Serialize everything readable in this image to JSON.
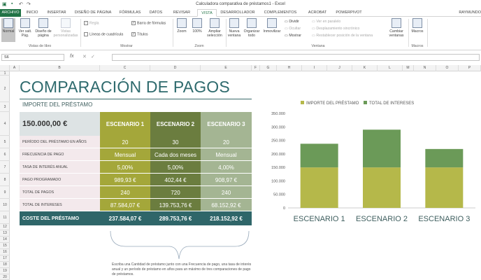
{
  "window": {
    "title": "Calculadora comparativa de préstamos1 - Excel",
    "user": "RAYMUNDO"
  },
  "tabs": [
    "ARCHIVO",
    "INICIO",
    "INSERTAR",
    "DISEÑO DE PÁGINA",
    "FÓRMULAS",
    "DATOS",
    "REVISAR",
    "VISTA",
    "DESARROLLADOR",
    "COMPLEMENTOS",
    "ACROBAT",
    "POWERPIVOT"
  ],
  "ribbon": {
    "views": {
      "normal": "Normal",
      "page_break": "Ver salt. Pág.",
      "page_layout": "Diseño de página",
      "custom": "Vistas personalizadas",
      "group": "Vistas de libro"
    },
    "show": {
      "ruler": "Regla",
      "gridlines": "Líneas de cuadrícula",
      "formula_bar": "Barra de fórmulas",
      "headings": "Títulos",
      "group": "Mostrar"
    },
    "zoom": {
      "zoom": "Zoom",
      "hundred": "100%",
      "selection": "Ampliar selección",
      "group": "Zoom"
    },
    "window": {
      "new": "Nueva ventana",
      "arrange": "Organizar todo",
      "freeze": "Inmovilizar",
      "split": "Dividir",
      "hide": "Ocultar",
      "unhide": "Mostrar",
      "side_by_side": "Ver en paralelo",
      "sync": "Desplazamiento sincrónico",
      "reset": "Restablecer posición de la ventana",
      "switch": "Cambiar ventanas",
      "group": "Ventana"
    },
    "macros": {
      "macros": "Macros",
      "group": "Macros"
    }
  },
  "formula_bar": {
    "name_box": "S6",
    "fx": "fx",
    "content": ""
  },
  "columns": [
    "A",
    "B",
    "C",
    "D",
    "E",
    "F",
    "G",
    "H",
    "I",
    "J",
    "K",
    "L",
    "M",
    "N",
    "O",
    "P"
  ],
  "rows": [
    "1",
    "2",
    "3",
    "4",
    "5",
    "6",
    "7",
    "8",
    "9",
    "10",
    "11",
    "12",
    "13",
    "14",
    "15",
    "16",
    "17",
    "18",
    "19",
    "20"
  ],
  "sheet": {
    "heading": "COMPARACIÓN DE PAGOS",
    "subheading": "IMPORTE DEL PRÉSTAMO",
    "loan_amount": "150.000,00 €",
    "scenarios": [
      "ESCENARIO 1",
      "ESCENARIO 2",
      "ESCENARIO 3"
    ],
    "rows": [
      {
        "label": "PERÍODO DEL PRÉSTAMO EN AÑOS",
        "values": [
          "20",
          "30",
          "20"
        ]
      },
      {
        "label": "FRECUENCIA DE PAGO",
        "values": [
          "Mensual",
          "Cada dos meses",
          "Mensual"
        ]
      },
      {
        "label": "TASA DE INTERÉS ANUAL",
        "values": [
          "5,00%",
          "5,00%",
          "4,00%"
        ]
      },
      {
        "label": "PAGO PROGRAMADO",
        "values": [
          "989,93 €",
          "402,44 €",
          "908,97 €"
        ]
      },
      {
        "label": "TOTAL DE PAGOS",
        "values": [
          "240",
          "720",
          "240"
        ]
      },
      {
        "label": "TOTAL DE INTERESES",
        "values": [
          "87.584,07 €",
          "139.753,76 €",
          "68.152,92 €"
        ]
      }
    ],
    "total": {
      "label": "COSTE DEL PRÉSTAMO",
      "values": [
        "237.584,07 €",
        "289.753,76 €",
        "218.152,92 €"
      ]
    },
    "note": "Escriba una Cantidad de préstamo junto con una Frecuencia de pago, una tasa de interés anual y un período de préstamo en años para un máximo de tres comparaciones de pago de préstamos."
  },
  "chart_data": {
    "type": "bar",
    "stacked": true,
    "categories": [
      "ESCENARIO 1",
      "ESCENARIO 2",
      "ESCENARIO 3"
    ],
    "series": [
      {
        "name": "IMPORTE DEL PRÉSTAMO",
        "values": [
          150000,
          150000,
          150000
        ],
        "color": "#b5b84a"
      },
      {
        "name": "TOTAL DE INTERESES",
        "values": [
          87584.07,
          139753.76,
          68152.92
        ],
        "color": "#6b9a58"
      }
    ],
    "ylim": [
      0,
      350000
    ],
    "yticks": [
      "0",
      "50.000",
      "100.000",
      "150.000",
      "200.000",
      "250.000",
      "300.000",
      "350.000"
    ],
    "grid": false,
    "legend": "top"
  },
  "colors": {
    "accent": "#217346",
    "heading": "#2e6a6d"
  }
}
